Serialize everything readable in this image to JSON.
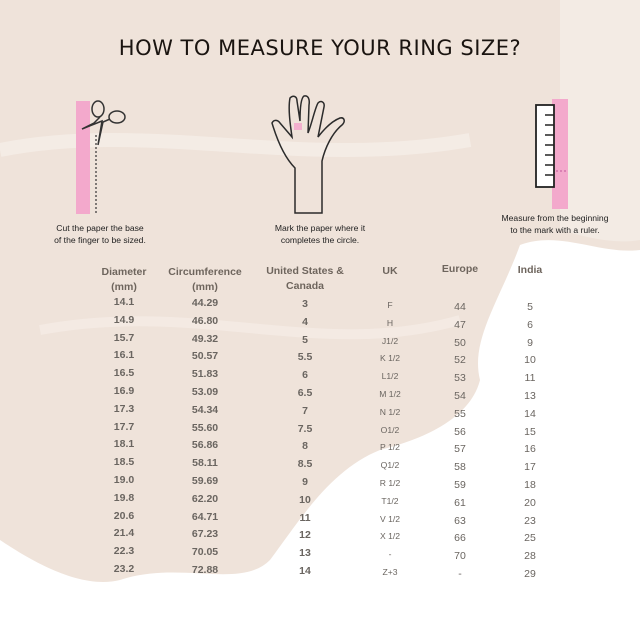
{
  "title": "HOW TO MEASURE YOUR RING SIZE?",
  "colors": {
    "accent_pink": "#f3a9cc",
    "background_brush": "#efe3da",
    "title": "#1a1410",
    "header_text": "#6e655d"
  },
  "steps": [
    {
      "icon": "scissors-cutting-paper-icon",
      "text_line1": "Cut the paper the base",
      "text_line2": "of the finger to be sized."
    },
    {
      "icon": "hand-with-paper-mark-icon",
      "text_line1": "Mark the paper where it",
      "text_line2": "completes the circle."
    },
    {
      "icon": "ruler-with-paper-icon",
      "text_line1": "Measure from the beginning",
      "text_line2": "to the mark with a ruler."
    }
  ],
  "table": {
    "columns": [
      {
        "key": "diameter",
        "header_line1": "Diameter",
        "header_line2": "(mm)"
      },
      {
        "key": "circumference",
        "header_line1": "Circumference",
        "header_line2": "(mm)"
      },
      {
        "key": "us",
        "header_line1": "United States &",
        "header_line2": "Canada"
      },
      {
        "key": "uk",
        "header_line1": "UK",
        "header_line2": ""
      },
      {
        "key": "europe",
        "header_line1": "Europe",
        "header_line2": ""
      },
      {
        "key": "india",
        "header_line1": "India",
        "header_line2": ""
      }
    ],
    "diameter": [
      "14.1",
      "14.9",
      "15.7",
      "16.1",
      "16.5",
      "16.9",
      "17.3",
      "17.7",
      "18.1",
      "18.5",
      "19.0",
      "19.8",
      "20.6",
      "21.4",
      "22.3",
      "23.2"
    ],
    "circumference": [
      "44.29",
      "46.80",
      "49.32",
      "50.57",
      "51.83",
      "53.09",
      "54.34",
      "55.60",
      "56.86",
      "58.11",
      "59.69",
      "62.20",
      "64.71",
      "67.23",
      "70.05",
      "72.88"
    ],
    "us": [
      "3",
      "4",
      "5",
      "5.5",
      "6",
      "6.5",
      "7",
      "7.5",
      "8",
      "8.5",
      "9",
      "10",
      "11",
      "12",
      "13",
      "14"
    ],
    "uk": [
      "F",
      "H",
      "J1/2",
      "K 1/2",
      "L1/2",
      "M 1/2",
      "N 1/2",
      "O1/2",
      "P 1/2",
      "Q1/2",
      "R 1/2",
      "T1/2",
      "V 1/2",
      "X 1/2",
      "-",
      "Z+3"
    ],
    "europe": [
      "44",
      "47",
      "50",
      "52",
      "53",
      "54",
      "55",
      "56",
      "57",
      "58",
      "59",
      "61",
      "63",
      "66",
      "70",
      "-"
    ],
    "india": [
      "5",
      "6",
      "9",
      "10",
      "11",
      "13",
      "14",
      "15",
      "16",
      "17",
      "18",
      "20",
      "23",
      "25",
      "28",
      "29"
    ]
  }
}
